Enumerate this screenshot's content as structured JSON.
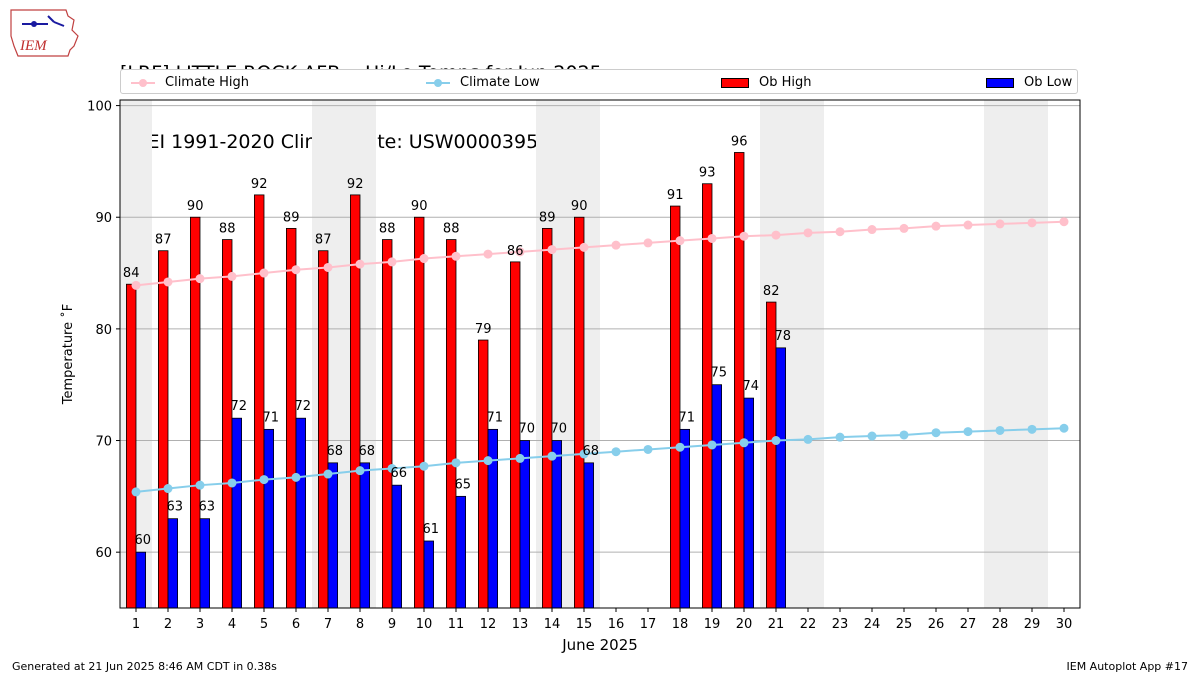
{
  "title": {
    "line1": "[LRF] LITTLE ROCK AFB :: Hi/Lo Temps for Jun 2025",
    "line2": "NCEI 1991-2020 Climate Site: USW00003952"
  },
  "logo": {
    "text": "IEM"
  },
  "legend": {
    "climate_high": "Climate High",
    "climate_low": "Climate Low",
    "ob_high": "Ob High",
    "ob_low": "Ob Low"
  },
  "colors": {
    "climate_high": "#ffc0cb",
    "climate_low": "#87ceeb",
    "ob_high": "#ff0000",
    "ob_low": "#0000ff",
    "weekend": "#eeeeee",
    "grid": "#b0b0b0"
  },
  "footer": {
    "left": "Generated at 21 Jun 2025 8:46 AM CDT in 0.38s",
    "right": "IEM Autoplot App #17"
  },
  "chart_data": {
    "type": "bar",
    "xlabel": "June 2025",
    "ylabel": "Temperature ˚F",
    "ylim": [
      55,
      100.5
    ],
    "yticks": [
      60,
      70,
      80,
      90,
      100
    ],
    "grid": true,
    "legend_placement": "top",
    "days": [
      1,
      2,
      3,
      4,
      5,
      6,
      7,
      8,
      9,
      10,
      11,
      12,
      13,
      14,
      15,
      16,
      17,
      18,
      19,
      20,
      21,
      22,
      23,
      24,
      25,
      26,
      27,
      28,
      29,
      30
    ],
    "weekend_days": [
      1,
      7,
      8,
      14,
      15,
      21,
      22,
      28,
      29
    ],
    "series": [
      {
        "name": "Ob High",
        "kind": "bar",
        "values": [
          84,
          87,
          90,
          88,
          92,
          89,
          87,
          92,
          88,
          90,
          88,
          79,
          86,
          89,
          90,
          null,
          null,
          91,
          93,
          95.8,
          82.4,
          null,
          null,
          null,
          null,
          null,
          null,
          null,
          null,
          null
        ]
      },
      {
        "name": "Ob Low",
        "kind": "bar",
        "values": [
          60,
          63,
          63,
          72,
          71,
          72,
          68,
          68,
          66,
          61,
          65,
          71,
          70,
          70,
          68,
          null,
          null,
          71,
          75,
          73.8,
          78.3,
          null,
          null,
          null,
          null,
          null,
          null,
          null,
          null,
          null
        ]
      },
      {
        "name": "Climate High",
        "kind": "line",
        "values": [
          83.9,
          84.2,
          84.5,
          84.7,
          85.0,
          85.3,
          85.5,
          85.8,
          86.0,
          86.3,
          86.5,
          86.7,
          86.9,
          87.1,
          87.3,
          87.5,
          87.7,
          87.9,
          88.1,
          88.3,
          88.4,
          88.6,
          88.7,
          88.9,
          89.0,
          89.2,
          89.3,
          89.4,
          89.5,
          89.6
        ]
      },
      {
        "name": "Climate Low",
        "kind": "line",
        "values": [
          65.4,
          65.7,
          66.0,
          66.2,
          66.5,
          66.7,
          67.0,
          67.3,
          67.5,
          67.7,
          68.0,
          68.2,
          68.4,
          68.6,
          68.8,
          69.0,
          69.2,
          69.4,
          69.6,
          69.8,
          70.0,
          70.1,
          70.3,
          70.4,
          70.5,
          70.7,
          70.8,
          70.9,
          71.0,
          71.1
        ]
      }
    ],
    "bar_labels_high": [
      "84",
      "87",
      "90",
      "88",
      "92",
      "89",
      "87",
      "92",
      "88",
      "90",
      "88",
      "79",
      "86",
      "89",
      "90",
      "",
      "",
      "91",
      "93",
      "96",
      "82",
      "",
      "",
      "",
      "",
      "",
      "",
      "",
      "",
      ""
    ],
    "bar_labels_low": [
      "60",
      "63",
      "63",
      "72",
      "71",
      "72",
      "68",
      "68",
      "66",
      "61",
      "65",
      "71",
      "70",
      "70",
      "68",
      "",
      "",
      "71",
      "75",
      "74",
      "78",
      "",
      "",
      "",
      "",
      "",
      "",
      "",
      "",
      ""
    ]
  }
}
